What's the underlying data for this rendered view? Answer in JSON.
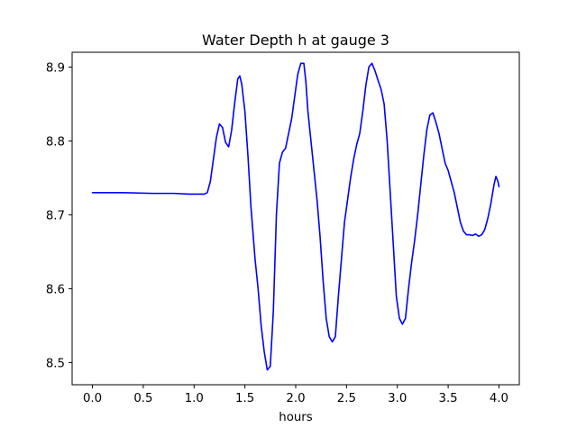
{
  "chart_data": {
    "type": "line",
    "title": "Water Depth h at gauge 3",
    "xlabel": "hours",
    "ylabel": "",
    "xlim": [
      -0.2,
      4.2
    ],
    "ylim": [
      8.47,
      8.92
    ],
    "xticks": [
      0.0,
      0.5,
      1.0,
      1.5,
      2.0,
      2.5,
      3.0,
      3.5,
      4.0
    ],
    "xtick_labels": [
      "0.0",
      "0.5",
      "1.0",
      "1.5",
      "2.0",
      "2.5",
      "3.0",
      "3.5",
      "4.0"
    ],
    "yticks": [
      8.5,
      8.6,
      8.7,
      8.8,
      8.9
    ],
    "ytick_labels": [
      "8.5",
      "8.6",
      "8.7",
      "8.8",
      "8.9"
    ],
    "grid": false,
    "series": [
      {
        "color": "#0000ff",
        "x": [
          0.0,
          0.3,
          0.6,
          0.8,
          0.95,
          1.05,
          1.1,
          1.13,
          1.16,
          1.19,
          1.22,
          1.25,
          1.28,
          1.31,
          1.34,
          1.37,
          1.4,
          1.43,
          1.45,
          1.47,
          1.5,
          1.53,
          1.56,
          1.6,
          1.63,
          1.66,
          1.69,
          1.72,
          1.75,
          1.78,
          1.81,
          1.84,
          1.87,
          1.9,
          1.93,
          1.96,
          1.99,
          2.02,
          2.05,
          2.08,
          2.1,
          2.12,
          2.15,
          2.18,
          2.21,
          2.24,
          2.27,
          2.3,
          2.33,
          2.36,
          2.39,
          2.42,
          2.45,
          2.48,
          2.51,
          2.54,
          2.57,
          2.6,
          2.63,
          2.66,
          2.69,
          2.72,
          2.75,
          2.78,
          2.81,
          2.84,
          2.87,
          2.9,
          2.93,
          2.96,
          2.99,
          3.02,
          3.05,
          3.08,
          3.11,
          3.14,
          3.17,
          3.2,
          3.23,
          3.26,
          3.29,
          3.32,
          3.35,
          3.38,
          3.41,
          3.44,
          3.47,
          3.5,
          3.53,
          3.56,
          3.59,
          3.62,
          3.65,
          3.68,
          3.71,
          3.74,
          3.77,
          3.8,
          3.83,
          3.86,
          3.89,
          3.92,
          3.95,
          3.97,
          3.99,
          4.0
        ],
        "y": [
          8.73,
          8.73,
          8.729,
          8.729,
          8.728,
          8.728,
          8.728,
          8.73,
          8.745,
          8.775,
          8.805,
          8.823,
          8.818,
          8.798,
          8.792,
          8.815,
          8.852,
          8.884,
          8.888,
          8.876,
          8.84,
          8.78,
          8.71,
          8.64,
          8.6,
          8.55,
          8.515,
          8.49,
          8.495,
          8.57,
          8.7,
          8.77,
          8.785,
          8.79,
          8.81,
          8.83,
          8.86,
          8.89,
          8.905,
          8.905,
          8.88,
          8.84,
          8.8,
          8.76,
          8.72,
          8.67,
          8.61,
          8.56,
          8.535,
          8.528,
          8.535,
          8.59,
          8.64,
          8.69,
          8.72,
          8.75,
          8.775,
          8.795,
          8.81,
          8.84,
          8.875,
          8.9,
          8.905,
          8.895,
          8.882,
          8.87,
          8.85,
          8.8,
          8.73,
          8.66,
          8.59,
          8.56,
          8.552,
          8.56,
          8.6,
          8.635,
          8.665,
          8.7,
          8.74,
          8.78,
          8.815,
          8.835,
          8.838,
          8.825,
          8.81,
          8.79,
          8.77,
          8.76,
          8.745,
          8.73,
          8.71,
          8.69,
          8.678,
          8.673,
          8.673,
          8.672,
          8.674,
          8.671,
          8.673,
          8.68,
          8.695,
          8.715,
          8.74,
          8.752,
          8.745,
          8.738
        ]
      }
    ]
  }
}
